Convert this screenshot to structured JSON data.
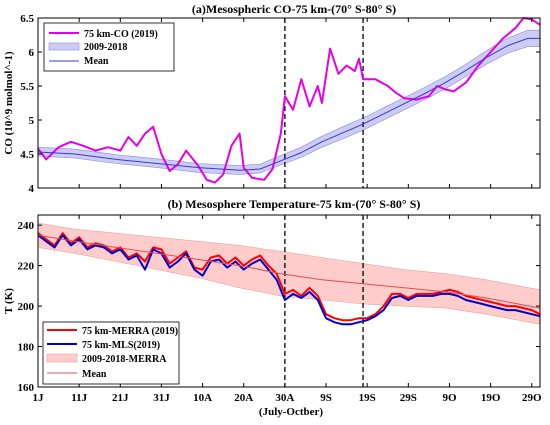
{
  "chart_data": [
    {
      "type": "line",
      "title": "(a)Mesospheric CO-75 km-(70° S-80° S)",
      "ylabel": "CO (10^9 molmol^-1)",
      "xlabel": "",
      "xlim": [
        1,
        123
      ],
      "ylim": [
        4,
        6.5
      ],
      "yticks": [
        4,
        4.5,
        5,
        5.5,
        6,
        6.5
      ],
      "grid": false,
      "legend_position": "top-left",
      "vlines": [
        61,
        80
      ],
      "series": [
        {
          "name": "75 km-CO (2019)",
          "color": "#e600e6",
          "points": [
            [
              1,
              4.58
            ],
            [
              3,
              4.42
            ],
            [
              6,
              4.6
            ],
            [
              9,
              4.68
            ],
            [
              12,
              4.62
            ],
            [
              15,
              4.55
            ],
            [
              18,
              4.6
            ],
            [
              21,
              4.55
            ],
            [
              23,
              4.75
            ],
            [
              25,
              4.62
            ],
            [
              27,
              4.8
            ],
            [
              29,
              4.9
            ],
            [
              31,
              4.5
            ],
            [
              33,
              4.25
            ],
            [
              35,
              4.35
            ],
            [
              37,
              4.55
            ],
            [
              40,
              4.32
            ],
            [
              42,
              4.12
            ],
            [
              44,
              4.08
            ],
            [
              46,
              4.2
            ],
            [
              48,
              4.62
            ],
            [
              50,
              4.8
            ],
            [
              51,
              4.3
            ],
            [
              53,
              4.15
            ],
            [
              56,
              4.12
            ],
            [
              58,
              4.28
            ],
            [
              60,
              4.8
            ],
            [
              61,
              5.35
            ],
            [
              63,
              5.15
            ],
            [
              65,
              5.6
            ],
            [
              67,
              5.2
            ],
            [
              69,
              5.5
            ],
            [
              70,
              5.25
            ],
            [
              72,
              6.05
            ],
            [
              74,
              5.68
            ],
            [
              76,
              5.8
            ],
            [
              78,
              5.72
            ],
            [
              79,
              5.9
            ],
            [
              80,
              5.6
            ],
            [
              83,
              5.6
            ],
            [
              86,
              5.5
            ],
            [
              88,
              5.4
            ],
            [
              90,
              5.32
            ],
            [
              93,
              5.3
            ],
            [
              96,
              5.35
            ],
            [
              98,
              5.5
            ],
            [
              100,
              5.45
            ],
            [
              102,
              5.42
            ],
            [
              105,
              5.55
            ],
            [
              108,
              5.8
            ],
            [
              111,
              6.0
            ],
            [
              114,
              6.2
            ],
            [
              117,
              6.35
            ],
            [
              119,
              6.5
            ],
            [
              121,
              6.48
            ],
            [
              123,
              6.4
            ]
          ]
        },
        {
          "name": "2009-2018",
          "color": "#ccccf5",
          "band": [
            [
              1,
              4.47,
              4.6
            ],
            [
              10,
              4.44,
              4.57
            ],
            [
              20,
              4.36,
              4.49
            ],
            [
              30,
              4.3,
              4.43
            ],
            [
              40,
              4.23,
              4.36
            ],
            [
              50,
              4.2,
              4.33
            ],
            [
              55,
              4.22,
              4.35
            ],
            [
              60,
              4.34,
              4.48
            ],
            [
              65,
              4.45,
              4.6
            ],
            [
              70,
              4.6,
              4.76
            ],
            [
              75,
              4.72,
              4.9
            ],
            [
              80,
              4.85,
              5.03
            ],
            [
              85,
              5.0,
              5.18
            ],
            [
              90,
              5.15,
              5.33
            ],
            [
              95,
              5.3,
              5.48
            ],
            [
              100,
              5.46,
              5.64
            ],
            [
              105,
              5.64,
              5.82
            ],
            [
              110,
              5.82,
              6.02
            ],
            [
              115,
              5.98,
              6.2
            ],
            [
              120,
              6.08,
              6.32
            ],
            [
              123,
              6.08,
              6.32
            ]
          ]
        },
        {
          "name": "Mean",
          "color": "#3a3ad0",
          "points": [
            [
              1,
              4.53
            ],
            [
              10,
              4.5
            ],
            [
              20,
              4.42
            ],
            [
              30,
              4.36
            ],
            [
              40,
              4.3
            ],
            [
              50,
              4.26
            ],
            [
              55,
              4.28
            ],
            [
              60,
              4.4
            ],
            [
              65,
              4.52
            ],
            [
              70,
              4.68
            ],
            [
              75,
              4.81
            ],
            [
              80,
              4.94
            ],
            [
              85,
              5.09
            ],
            [
              90,
              5.24
            ],
            [
              95,
              5.39
            ],
            [
              100,
              5.55
            ],
            [
              105,
              5.73
            ],
            [
              110,
              5.92
            ],
            [
              115,
              6.09
            ],
            [
              120,
              6.2
            ],
            [
              123,
              6.2
            ]
          ]
        }
      ]
    },
    {
      "type": "line",
      "title": "(b) Mesosphere Temperature-75 km-(70° S-80° S)",
      "ylabel": "T (K)",
      "xlabel": "(July-Octber)",
      "xlim": [
        1,
        123
      ],
      "ylim": [
        160,
        245
      ],
      "yticks": [
        160,
        180,
        200,
        220,
        240
      ],
      "x_tick_labels": [
        {
          "x": 1,
          "label": "1J"
        },
        {
          "x": 11,
          "label": "11J"
        },
        {
          "x": 21,
          "label": "21J"
        },
        {
          "x": 31,
          "label": "31J"
        },
        {
          "x": 41,
          "label": "10A"
        },
        {
          "x": 51,
          "label": "20A"
        },
        {
          "x": 61,
          "label": "30A"
        },
        {
          "x": 71,
          "label": "9S"
        },
        {
          "x": 81,
          "label": "19S"
        },
        {
          "x": 91,
          "label": "29S"
        },
        {
          "x": 101,
          "label": "9O"
        },
        {
          "x": 111,
          "label": "19O"
        },
        {
          "x": 121,
          "label": "29O"
        }
      ],
      "grid": false,
      "legend_position": "bottom-left",
      "vlines": [
        61,
        80
      ],
      "series": [
        {
          "name": "75 km-MERRA (2019)",
          "color": "#ff0000",
          "points": [
            [
              1,
              236
            ],
            [
              3,
              233
            ],
            [
              5,
              230
            ],
            [
              7,
              236
            ],
            [
              9,
              231
            ],
            [
              11,
              234
            ],
            [
              13,
              229
            ],
            [
              15,
              231
            ],
            [
              17,
              230
            ],
            [
              19,
              227
            ],
            [
              21,
              229
            ],
            [
              23,
              224
            ],
            [
              25,
              226
            ],
            [
              27,
              222
            ],
            [
              29,
              229
            ],
            [
              31,
              228
            ],
            [
              33,
              221
            ],
            [
              35,
              224
            ],
            [
              37,
              227
            ],
            [
              39,
              219
            ],
            [
              41,
              218
            ],
            [
              43,
              224
            ],
            [
              45,
              225
            ],
            [
              47,
              221
            ],
            [
              49,
              224
            ],
            [
              51,
              220
            ],
            [
              53,
              223
            ],
            [
              55,
              225
            ],
            [
              57,
              220
            ],
            [
              59,
              216
            ],
            [
              61,
              206
            ],
            [
              63,
              208
            ],
            [
              65,
              205
            ],
            [
              67,
              209
            ],
            [
              69,
              205
            ],
            [
              71,
              196
            ],
            [
              73,
              194
            ],
            [
              75,
              193
            ],
            [
              77,
              193
            ],
            [
              79,
              194
            ],
            [
              81,
              194
            ],
            [
              83,
              196
            ],
            [
              85,
              200
            ],
            [
              87,
              206
            ],
            [
              89,
              206
            ],
            [
              91,
              204
            ],
            [
              93,
              206
            ],
            [
              95,
              206
            ],
            [
              97,
              206
            ],
            [
              99,
              207
            ],
            [
              101,
              208
            ],
            [
              103,
              207
            ],
            [
              105,
              205
            ],
            [
              107,
              204
            ],
            [
              109,
              203
            ],
            [
              111,
              202
            ],
            [
              113,
              201
            ],
            [
              115,
              200
            ],
            [
              117,
              200
            ],
            [
              119,
              199
            ],
            [
              121,
              198
            ],
            [
              123,
              196
            ]
          ]
        },
        {
          "name": "75 km-MLS(2019)",
          "color": "#0000cc",
          "points": [
            [
              1,
              235
            ],
            [
              3,
              232
            ],
            [
              5,
              229
            ],
            [
              7,
              235
            ],
            [
              9,
              230
            ],
            [
              11,
              233
            ],
            [
              13,
              228
            ],
            [
              15,
              230
            ],
            [
              17,
              229
            ],
            [
              19,
              226
            ],
            [
              21,
              228
            ],
            [
              23,
              223
            ],
            [
              25,
              225
            ],
            [
              27,
              218
            ],
            [
              29,
              228
            ],
            [
              31,
              226
            ],
            [
              33,
              219
            ],
            [
              35,
              222
            ],
            [
              37,
              226
            ],
            [
              39,
              218
            ],
            [
              41,
              215
            ],
            [
              43,
              222
            ],
            [
              45,
              223
            ],
            [
              47,
              219
            ],
            [
              49,
              222
            ],
            [
              51,
              218
            ],
            [
              53,
              221
            ],
            [
              55,
              223
            ],
            [
              57,
              218
            ],
            [
              59,
              213
            ],
            [
              61,
              203
            ],
            [
              63,
              206
            ],
            [
              65,
              204
            ],
            [
              67,
              207
            ],
            [
              69,
              203
            ],
            [
              71,
              194
            ],
            [
              73,
              192
            ],
            [
              75,
              191
            ],
            [
              77,
              191
            ],
            [
              79,
              192
            ],
            [
              81,
              193
            ],
            [
              83,
              195
            ],
            [
              85,
              198
            ],
            [
              87,
              204
            ],
            [
              89,
              205
            ],
            [
              91,
              203
            ],
            [
              93,
              205
            ],
            [
              95,
              205
            ],
            [
              97,
              205
            ],
            [
              99,
              206
            ],
            [
              101,
              206
            ],
            [
              103,
              205
            ],
            [
              105,
              203
            ],
            [
              107,
              202
            ],
            [
              109,
              201
            ],
            [
              111,
              200
            ],
            [
              113,
              199
            ],
            [
              115,
              198
            ],
            [
              117,
              198
            ],
            [
              119,
              197
            ],
            [
              121,
              196
            ],
            [
              123,
              195
            ]
          ]
        },
        {
          "name": "2009-2018-MERRA",
          "color": "#ffcccc",
          "band": [
            [
              1,
              229,
              241
            ],
            [
              10,
              226,
              238
            ],
            [
              20,
              222,
              236
            ],
            [
              30,
              218,
              234
            ],
            [
              40,
              214,
              232
            ],
            [
              50,
              209,
              230
            ],
            [
              60,
              205,
              227
            ],
            [
              70,
              203,
              224
            ],
            [
              80,
              201,
              221
            ],
            [
              90,
              200,
              218
            ],
            [
              100,
              199,
              216
            ],
            [
              110,
              196,
              213
            ],
            [
              123,
              191,
              208
            ]
          ]
        },
        {
          "name": "Mean",
          "color": "#e05050",
          "points": [
            [
              1,
              235
            ],
            [
              10,
              232
            ],
            [
              20,
              229
            ],
            [
              30,
              226
            ],
            [
              40,
              223
            ],
            [
              50,
              220
            ],
            [
              60,
              216
            ],
            [
              70,
              213
            ],
            [
              80,
              211
            ],
            [
              90,
              209
            ],
            [
              100,
              207
            ],
            [
              110,
              204
            ],
            [
              123,
              199
            ]
          ]
        }
      ]
    }
  ]
}
